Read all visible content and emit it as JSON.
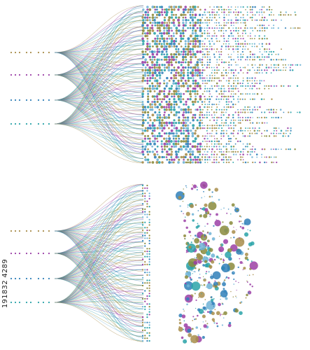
{
  "stock_id": "191832 4289",
  "palette": {
    "gold": "#a88d4a",
    "purple": "#9b3fa6",
    "blue": "#2f7fb8",
    "teal": "#2aa3a8",
    "olive": "#8a8b3c",
    "light_blue": "#6fb3d6"
  },
  "panels": [
    {
      "name": "top",
      "style": "ordered-dot-rows"
    },
    {
      "name": "bottom",
      "style": "scattered-circles"
    }
  ]
}
